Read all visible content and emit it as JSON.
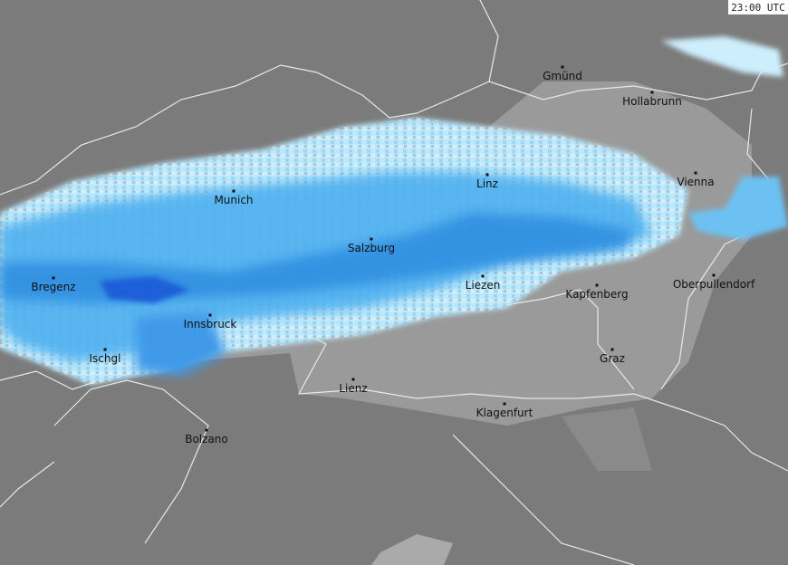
{
  "timestamp": "23:00 UTC",
  "cities": [
    {
      "name": "Gmünd"
    },
    {
      "name": "Hollabrunn"
    },
    {
      "name": "Linz"
    },
    {
      "name": "Vienna"
    },
    {
      "name": "Munich"
    },
    {
      "name": "Salzburg"
    },
    {
      "name": "Bregenz"
    },
    {
      "name": "Liezen"
    },
    {
      "name": "Kapfenberg"
    },
    {
      "name": "Oberpullendorf"
    },
    {
      "name": "Innsbruck"
    },
    {
      "name": "Ischgl"
    },
    {
      "name": "Graz"
    },
    {
      "name": "Lienz"
    },
    {
      "name": "Klagenfurt"
    },
    {
      "name": "Bolzano"
    }
  ]
}
